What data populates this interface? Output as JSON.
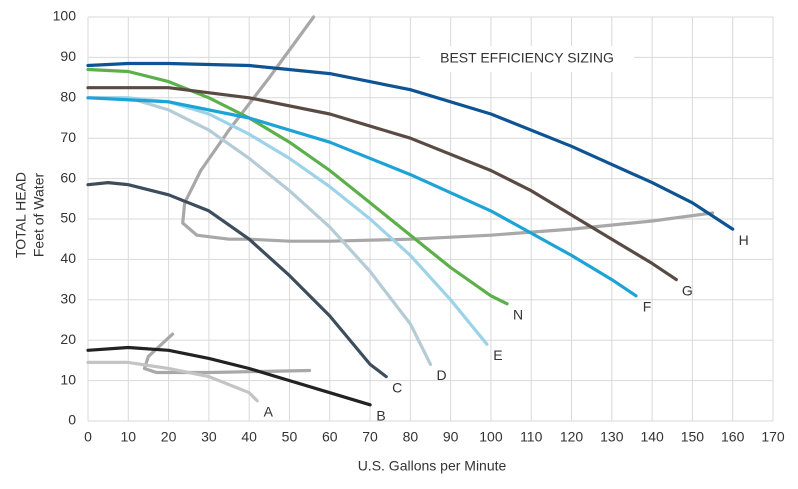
{
  "chart_data": {
    "type": "line",
    "annotation": "BEST EFFICIENCY SIZING",
    "xlabel": "U.S. Gallons per Minute",
    "ylabel": [
      "TOTAL HEAD",
      "Feet of Water"
    ],
    "xlim": [
      0,
      170
    ],
    "ylim": [
      0,
      100
    ],
    "xticks": [
      0,
      10,
      20,
      30,
      40,
      50,
      60,
      70,
      80,
      90,
      100,
      110,
      120,
      130,
      140,
      150,
      160,
      170
    ],
    "yticks": [
      0,
      10,
      20,
      30,
      40,
      50,
      60,
      70,
      80,
      90,
      100
    ],
    "grid": true,
    "series": [
      {
        "name": "A",
        "color": "#c4c4c4",
        "x": [
          0,
          10,
          20,
          30,
          40,
          42
        ],
        "values": [
          14.5,
          14.5,
          13,
          11,
          7,
          5
        ]
      },
      {
        "name": "B",
        "color": "#222222",
        "x": [
          0,
          10,
          20,
          30,
          40,
          50,
          60,
          70
        ],
        "values": [
          17.5,
          18.2,
          17.5,
          15.5,
          13,
          10,
          7,
          4
        ]
      },
      {
        "name": "C",
        "color": "#3d4d5c",
        "x": [
          0,
          5,
          10,
          20,
          30,
          40,
          50,
          60,
          70,
          74
        ],
        "values": [
          58.5,
          59,
          58.5,
          56,
          52,
          45,
          36,
          26,
          14,
          11
        ]
      },
      {
        "name": "D",
        "color": "#b5cbd5",
        "x": [
          0,
          10,
          20,
          30,
          40,
          50,
          60,
          70,
          80,
          85
        ],
        "values": [
          80,
          80,
          77,
          72,
          65,
          57,
          48,
          37,
          24,
          14
        ]
      },
      {
        "name": "E",
        "color": "#9dd3e8",
        "x": [
          0,
          10,
          20,
          30,
          40,
          50,
          60,
          70,
          80,
          90,
          99
        ],
        "values": [
          80,
          80,
          79,
          76,
          71,
          65,
          58,
          50,
          41,
          30,
          19
        ]
      },
      {
        "name": "N",
        "color": "#5cb04a",
        "x": [
          0,
          10,
          20,
          30,
          40,
          50,
          60,
          70,
          80,
          90,
          100,
          104
        ],
        "values": [
          87,
          86.5,
          84,
          80,
          75,
          69,
          62,
          54,
          46,
          38,
          31,
          29
        ]
      },
      {
        "name": "F",
        "color": "#1ea3d6",
        "x": [
          0,
          20,
          40,
          60,
          80,
          100,
          110,
          120,
          130,
          136
        ],
        "values": [
          80,
          79,
          75,
          69,
          61,
          52,
          46.5,
          41,
          35,
          31
        ]
      },
      {
        "name": "G",
        "color": "#5a4a44",
        "x": [
          0,
          20,
          40,
          60,
          80,
          100,
          110,
          120,
          130,
          140,
          146
        ],
        "values": [
          82.5,
          82.5,
          80,
          76,
          70,
          62,
          57,
          51,
          45,
          39,
          35
        ]
      },
      {
        "name": "H",
        "color": "#0e5494",
        "x": [
          0,
          10,
          20,
          40,
          60,
          80,
          100,
          120,
          140,
          150,
          160
        ],
        "values": [
          88,
          88.5,
          88.5,
          88,
          86,
          82,
          76,
          68,
          59,
          54,
          47.5
        ]
      }
    ],
    "reference_curves": [
      {
        "color": "#a8a8a8",
        "x": [
          56,
          45,
          35,
          28,
          24,
          23.5,
          27,
          35,
          40,
          50,
          60,
          80,
          100,
          120,
          140,
          155
        ],
        "values": [
          100,
          85,
          72,
          62,
          54,
          49,
          46,
          45,
          45,
          44.5,
          44.5,
          45,
          46,
          47.5,
          49.5,
          51.5
        ]
      },
      {
        "color": "#a8a8a8",
        "x": [
          21,
          15,
          14,
          17,
          30,
          55
        ],
        "values": [
          21.5,
          16,
          13,
          12,
          12,
          12.5
        ]
      }
    ]
  }
}
